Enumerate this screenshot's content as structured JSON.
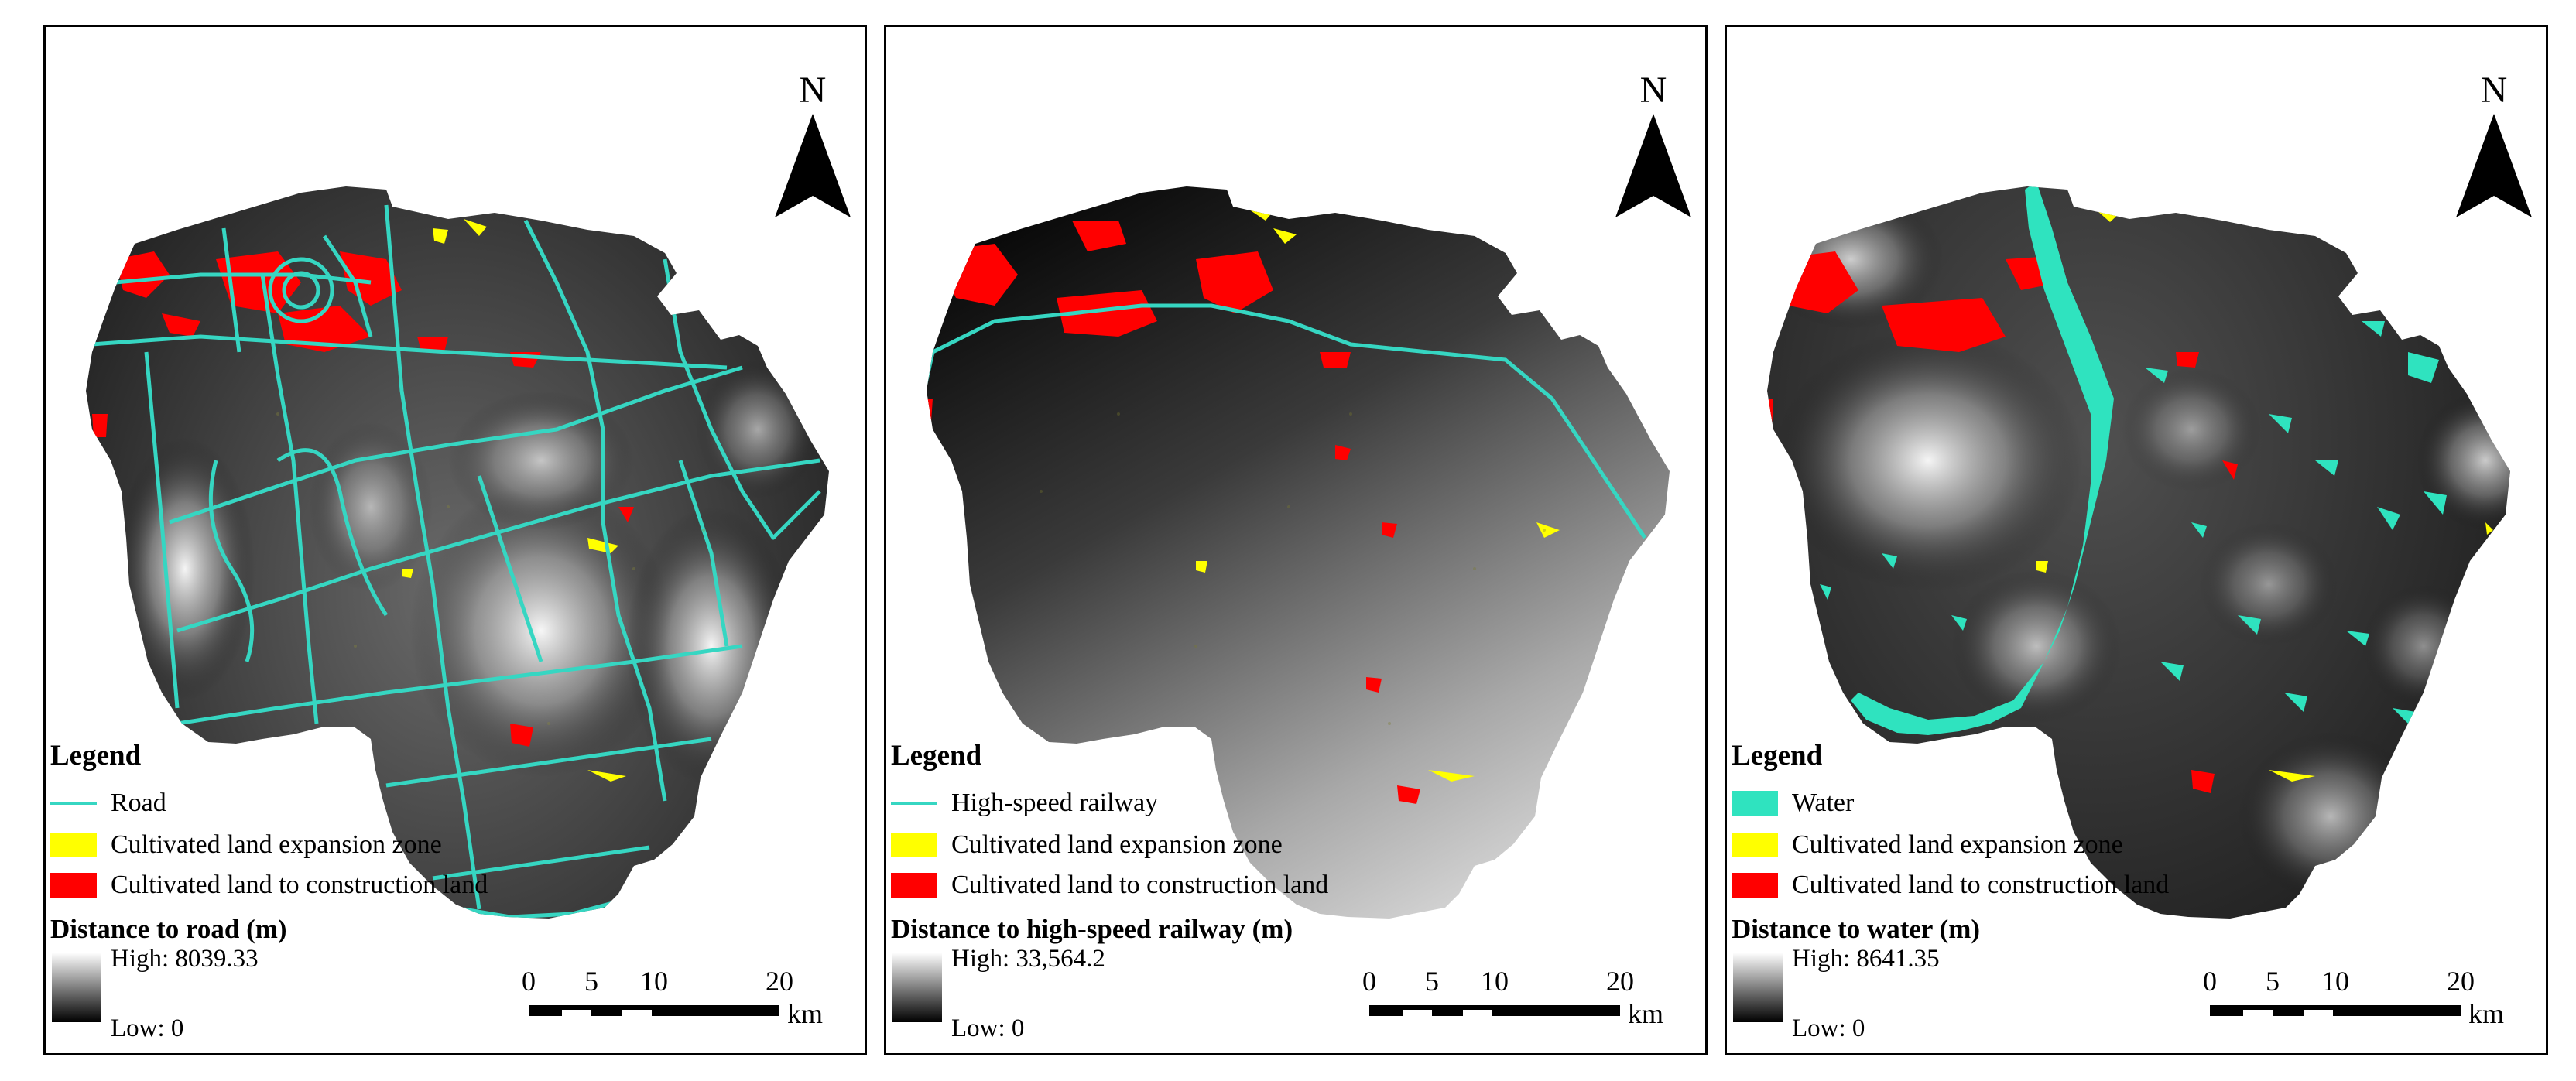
{
  "colors": {
    "road": "#36d6c2",
    "railway": "#36d6c2",
    "water": "#2fe3bf",
    "expansion": "#ffff00",
    "construction": "#ff0000"
  },
  "panels": [
    {
      "legend_title": "Legend",
      "items": [
        {
          "label": "Road",
          "symbol": "line",
          "color": "#36d6c2"
        },
        {
          "label": "Cultivated land expansion zone",
          "symbol": "fill",
          "color": "#ffff00"
        },
        {
          "label": "Cultivated land to construction land",
          "symbol": "fill",
          "color": "#ff0000"
        }
      ],
      "distance_title": "Distance to road (m)",
      "high_label": "High: 8039.33",
      "low_label": "Low: 0"
    },
    {
      "legend_title": "Legend",
      "items": [
        {
          "label": "High-speed railway",
          "symbol": "line",
          "color": "#36d6c2"
        },
        {
          "label": "Cultivated land expansion zone",
          "symbol": "fill",
          "color": "#ffff00"
        },
        {
          "label": "Cultivated land to construction land",
          "symbol": "fill",
          "color": "#ff0000"
        }
      ],
      "distance_title": "Distance to high-speed railway (m)",
      "high_label": "High: 33,564.2",
      "low_label": "Low: 0"
    },
    {
      "legend_title": "Legend",
      "items": [
        {
          "label": "Water",
          "symbol": "fill",
          "color": "#2fe3bf"
        },
        {
          "label": "Cultivated land expansion zone",
          "symbol": "fill",
          "color": "#ffff00"
        },
        {
          "label": "Cultivated land to construction land",
          "symbol": "fill",
          "color": "#ff0000"
        }
      ],
      "distance_title": "Distance to water (m)",
      "high_label": "High: 8641.35",
      "low_label": "Low: 0"
    }
  ],
  "north_arrow": {
    "label": "N"
  },
  "scale": {
    "ticks": [
      "0",
      "5",
      "10",
      "20"
    ],
    "unit": "km"
  }
}
